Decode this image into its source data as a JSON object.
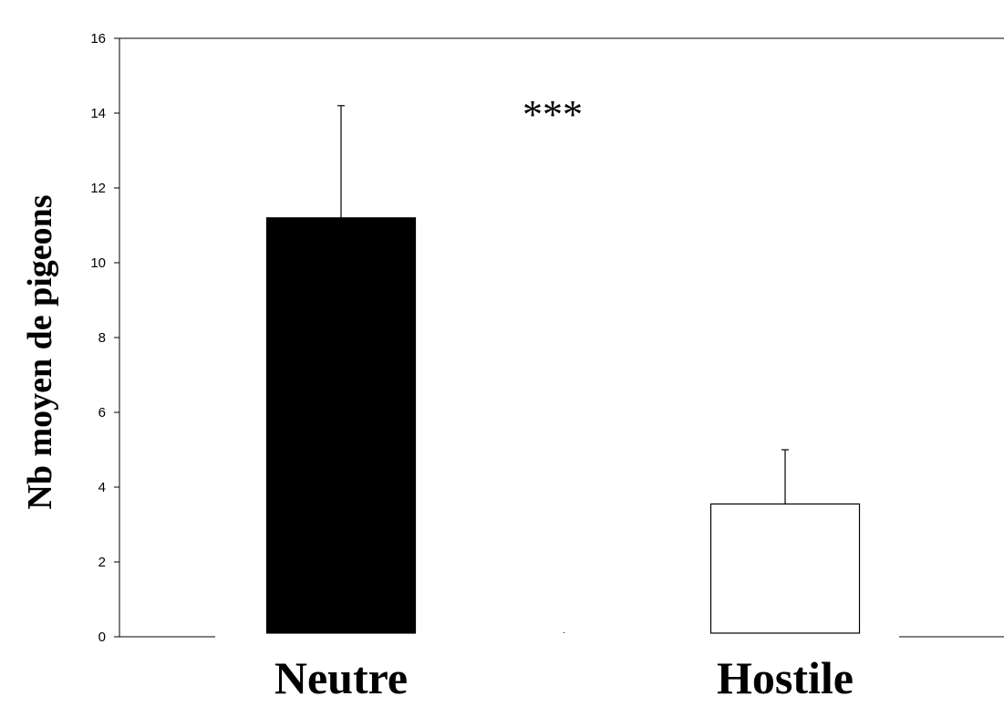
{
  "chart_data": {
    "type": "bar",
    "categories": [
      "Neutre",
      "Hostile"
    ],
    "values": [
      11.2,
      3.55
    ],
    "error_upper": [
      14.2,
      5.0
    ],
    "bar_colors": [
      "#000000",
      "#ffffff"
    ],
    "ylabel": "Nb moyen de pigeons",
    "ylim": [
      0,
      16
    ],
    "yticks": [
      0,
      2,
      4,
      6,
      8,
      10,
      12,
      14,
      16
    ],
    "annotation": "***",
    "grid": false
  }
}
